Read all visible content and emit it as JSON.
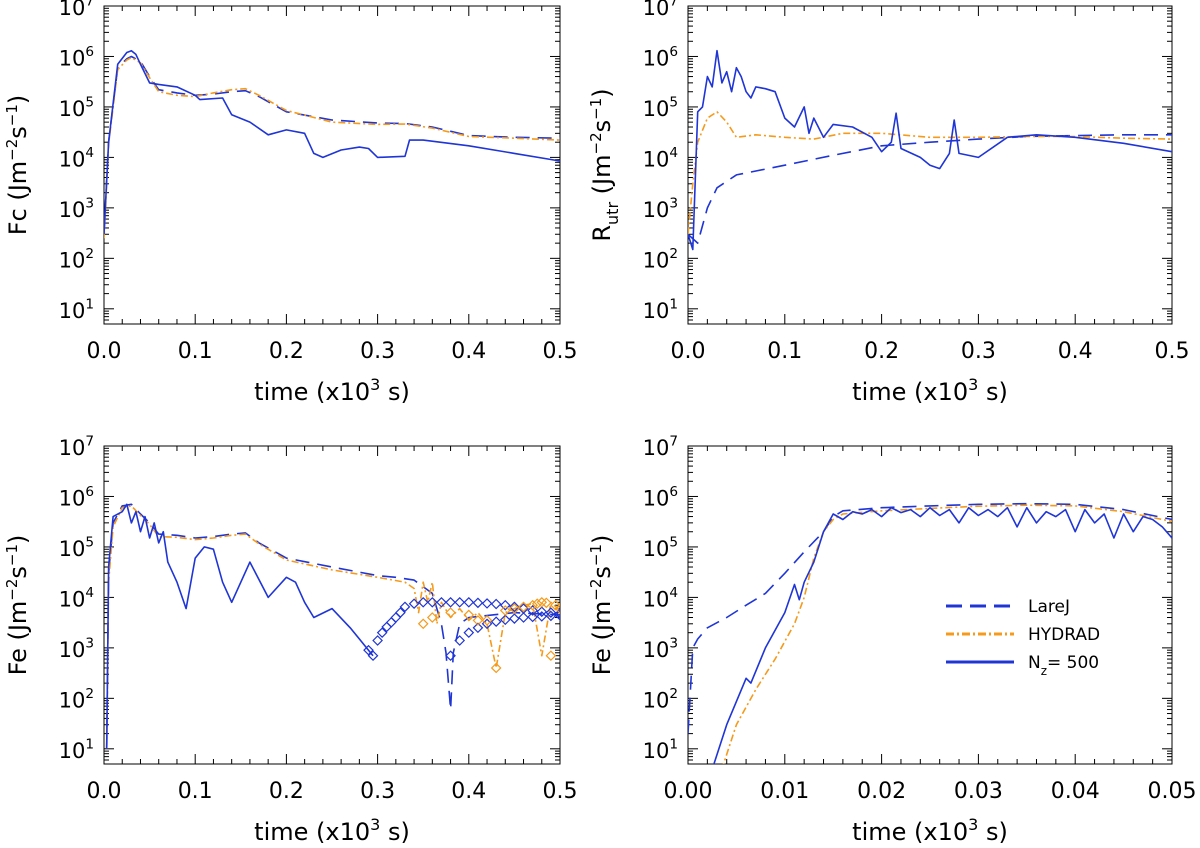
{
  "colors": {
    "larej": "#1f35d6",
    "hydrad": "#f59a1b",
    "nz500": "#1f35d6",
    "axis": "#000000"
  },
  "chart_data": [
    {
      "type": "line",
      "ylabel_main": "Fc",
      "ylabel_sub": "",
      "ylabel_units": "(Jm",
      "xlabel": "time (x10",
      "xlabel_tail": " s)",
      "xlim": [
        0,
        0.5
      ],
      "ylim": [
        5,
        10000000
      ],
      "yscale": "log",
      "xticks": [
        "0.0",
        "0.1",
        "0.2",
        "0.3",
        "0.4",
        "0.5"
      ],
      "xtick_values": [
        0,
        0.1,
        0.2,
        0.3,
        0.4,
        0.5
      ],
      "yticks": [
        "10",
        "10",
        "10",
        "10",
        "10",
        "10",
        "10"
      ],
      "ytick_exps": [
        "1",
        "2",
        "3",
        "4",
        "5",
        "6",
        "7"
      ],
      "series": [
        {
          "name": "LareJ",
          "style": "dashed",
          "x": [
            0,
            0.005,
            0.015,
            0.025,
            0.03,
            0.04,
            0.05,
            0.06,
            0.08,
            0.1,
            0.12,
            0.14,
            0.155,
            0.17,
            0.2,
            0.25,
            0.3,
            0.33,
            0.36,
            0.4,
            0.45,
            0.5
          ],
          "y": [
            300,
            20000,
            600000,
            900000,
            1000000,
            800000,
            400000,
            220000,
            190000,
            170000,
            180000,
            200000,
            210000,
            160000,
            80000,
            55000,
            48000,
            47000,
            40000,
            27000,
            25000,
            24000
          ]
        },
        {
          "name": "HYDRAD",
          "style": "dashdot",
          "x": [
            0,
            0.005,
            0.015,
            0.025,
            0.03,
            0.04,
            0.05,
            0.06,
            0.08,
            0.1,
            0.12,
            0.14,
            0.155,
            0.17,
            0.2,
            0.25,
            0.3,
            0.33,
            0.36,
            0.4,
            0.45,
            0.5
          ],
          "y": [
            250,
            18000,
            550000,
            850000,
            950000,
            750000,
            380000,
            200000,
            170000,
            160000,
            190000,
            220000,
            230000,
            170000,
            85000,
            50000,
            45000,
            46000,
            38000,
            26000,
            24000,
            22000
          ]
        },
        {
          "name": "N_z = 500",
          "style": "solid",
          "x": [
            0,
            0.005,
            0.015,
            0.025,
            0.03,
            0.035,
            0.04,
            0.05,
            0.06,
            0.08,
            0.1,
            0.105,
            0.13,
            0.14,
            0.16,
            0.18,
            0.2,
            0.22,
            0.23,
            0.24,
            0.26,
            0.28,
            0.29,
            0.3,
            0.33,
            0.335,
            0.35,
            0.4,
            0.45,
            0.5
          ],
          "y": [
            300,
            20000,
            700000,
            1200000,
            1300000,
            1100000,
            700000,
            300000,
            280000,
            250000,
            170000,
            140000,
            150000,
            70000,
            50000,
            28000,
            35000,
            30000,
            12000,
            10000,
            14000,
            16000,
            15000,
            10000,
            10500,
            22000,
            22000,
            17000,
            12000,
            8500
          ]
        }
      ]
    },
    {
      "type": "line",
      "ylabel_main": "R",
      "ylabel_sub": "utr",
      "ylabel_units": "(Jm",
      "xlabel": "time (x10",
      "xlabel_tail": " s)",
      "xlim": [
        0,
        0.5
      ],
      "ylim": [
        5,
        10000000
      ],
      "yscale": "log",
      "xticks": [
        "0.0",
        "0.1",
        "0.2",
        "0.3",
        "0.4",
        "0.5"
      ],
      "xtick_values": [
        0,
        0.1,
        0.2,
        0.3,
        0.4,
        0.5
      ],
      "yticks": [
        "10",
        "10",
        "10",
        "10",
        "10",
        "10",
        "10"
      ],
      "ytick_exps": [
        "1",
        "2",
        "3",
        "4",
        "5",
        "6",
        "7"
      ],
      "series": [
        {
          "name": "LareJ",
          "style": "dashed",
          "x": [
            0,
            0.01,
            0.02,
            0.03,
            0.05,
            0.1,
            0.15,
            0.2,
            0.25,
            0.3,
            0.35,
            0.4,
            0.45,
            0.5
          ],
          "y": [
            300,
            200,
            1000,
            2500,
            4500,
            7000,
            11000,
            17000,
            20000,
            23000,
            26000,
            27000,
            28000,
            28000
          ]
        },
        {
          "name": "HYDRAD",
          "style": "dashdot",
          "x": [
            0,
            0.005,
            0.01,
            0.02,
            0.03,
            0.04,
            0.05,
            0.07,
            0.1,
            0.13,
            0.16,
            0.2,
            0.25,
            0.3,
            0.35,
            0.4,
            0.45,
            0.5
          ],
          "y": [
            300,
            3000,
            20000,
            60000,
            80000,
            50000,
            25000,
            28000,
            25000,
            23000,
            30000,
            30000,
            25000,
            25000,
            26000,
            26000,
            24000,
            23000
          ]
        },
        {
          "name": "N_z = 500",
          "style": "solid",
          "x": [
            0,
            0.005,
            0.01,
            0.015,
            0.02,
            0.025,
            0.03,
            0.035,
            0.04,
            0.045,
            0.05,
            0.055,
            0.06,
            0.065,
            0.07,
            0.08,
            0.09,
            0.1,
            0.11,
            0.12,
            0.125,
            0.13,
            0.14,
            0.15,
            0.17,
            0.19,
            0.2,
            0.21,
            0.215,
            0.22,
            0.24,
            0.25,
            0.26,
            0.27,
            0.275,
            0.28,
            0.3,
            0.33,
            0.36,
            0.4,
            0.45,
            0.5
          ],
          "y": [
            300,
            150,
            80000,
            100000,
            400000,
            250000,
            1300000,
            300000,
            500000,
            200000,
            600000,
            400000,
            200000,
            150000,
            250000,
            230000,
            200000,
            60000,
            40000,
            100000,
            30000,
            60000,
            25000,
            45000,
            40000,
            25000,
            13000,
            20000,
            75000,
            15000,
            10000,
            7000,
            6000,
            12000,
            55000,
            12000,
            10000,
            25000,
            28000,
            25000,
            19000,
            13000
          ]
        }
      ]
    },
    {
      "type": "line",
      "ylabel_main": "Fe",
      "ylabel_sub": "",
      "ylabel_units": "(Jm",
      "xlabel": "time (x10",
      "xlabel_tail": " s)",
      "xlim": [
        0,
        0.5
      ],
      "ylim": [
        5,
        10000000
      ],
      "yscale": "log",
      "xticks": [
        "0.0",
        "0.1",
        "0.2",
        "0.3",
        "0.4",
        "0.5"
      ],
      "xtick_values": [
        0,
        0.1,
        0.2,
        0.3,
        0.4,
        0.5
      ],
      "yticks": [
        "10",
        "10",
        "10",
        "10",
        "10",
        "10",
        "10"
      ],
      "ytick_exps": [
        "1",
        "2",
        "3",
        "4",
        "5",
        "6",
        "7"
      ],
      "series": [
        {
          "name": "LareJ",
          "style": "dashed",
          "x": [
            0.003,
            0.005,
            0.01,
            0.02,
            0.03,
            0.04,
            0.05,
            0.06,
            0.08,
            0.1,
            0.12,
            0.14,
            0.155,
            0.17,
            0.2,
            0.25,
            0.3,
            0.32,
            0.34,
            0.36,
            0.37,
            0.375,
            0.38,
            0.383,
            0.39,
            0.4,
            0.45,
            0.5
          ],
          "y": [
            10,
            30000,
            300000,
            650000,
            700000,
            450000,
            300000,
            180000,
            170000,
            150000,
            160000,
            180000,
            190000,
            120000,
            60000,
            40000,
            27000,
            25000,
            22000,
            12000,
            3000,
            800,
            60,
            800,
            3000,
            4000,
            5000,
            4500
          ]
        },
        {
          "name": "HYDRAD",
          "style": "dashdot",
          "x": [
            0.003,
            0.005,
            0.01,
            0.02,
            0.03,
            0.04,
            0.05,
            0.06,
            0.08,
            0.1,
            0.12,
            0.14,
            0.155,
            0.17,
            0.2,
            0.25,
            0.3,
            0.33,
            0.34,
            0.345,
            0.35,
            0.355,
            0.36,
            0.365,
            0.37,
            0.38,
            0.39,
            0.4,
            0.41,
            0.42,
            0.43,
            0.44,
            0.45,
            0.46,
            0.47,
            0.48,
            0.49,
            0.5
          ],
          "y": [
            10,
            20000,
            250000,
            600000,
            650000,
            420000,
            280000,
            160000,
            155000,
            140000,
            150000,
            170000,
            180000,
            115000,
            55000,
            35000,
            25000,
            20000,
            15000,
            5000,
            20000,
            8000,
            20000,
            3000,
            8000,
            4000,
            6000,
            3500,
            5000,
            3000,
            400,
            5000,
            6000,
            7000,
            7500,
            700,
            8000,
            5500
          ]
        },
        {
          "name": "N_z = 500",
          "style": "solid",
          "x": [
            0.003,
            0.005,
            0.01,
            0.02,
            0.025,
            0.03,
            0.035,
            0.04,
            0.045,
            0.05,
            0.055,
            0.06,
            0.065,
            0.07,
            0.08,
            0.09,
            0.1,
            0.11,
            0.12,
            0.13,
            0.14,
            0.16,
            0.18,
            0.2,
            0.21,
            0.22,
            0.23,
            0.25,
            0.27,
            0.28,
            0.29,
            0.295
          ],
          "y": [
            10,
            40000,
            400000,
            500000,
            700000,
            300000,
            500000,
            200000,
            400000,
            150000,
            300000,
            120000,
            200000,
            50000,
            20000,
            6000,
            60000,
            100000,
            90000,
            20000,
            8000,
            50000,
            10000,
            25000,
            20000,
            8000,
            4000,
            6000,
            2500,
            1500,
            900,
            700
          ]
        },
        {
          "name": "LareJ-diamonds",
          "style": "markers",
          "x": [
            0.29,
            0.295,
            0.3,
            0.305,
            0.31,
            0.315,
            0.32,
            0.325,
            0.33,
            0.34,
            0.35,
            0.36,
            0.37,
            0.38,
            0.39,
            0.4,
            0.41,
            0.42,
            0.43,
            0.44,
            0.45,
            0.46,
            0.47,
            0.48,
            0.49,
            0.5,
            0.38,
            0.39,
            0.4,
            0.41,
            0.42,
            0.43,
            0.44,
            0.45,
            0.46,
            0.47,
            0.48,
            0.49,
            0.5
          ],
          "y": [
            900,
            700,
            1400,
            2000,
            2600,
            3200,
            4000,
            5000,
            6500,
            7500,
            8000,
            8000,
            8000,
            8000,
            8000,
            8000,
            7800,
            7600,
            7400,
            7000,
            6500,
            6000,
            5500,
            5200,
            5000,
            4800,
            700,
            1400,
            2000,
            2500,
            3000,
            3300,
            3600,
            3800,
            4000,
            4100,
            4200,
            4300,
            4400
          ]
        },
        {
          "name": "HYDRAD-diamonds",
          "style": "markers",
          "x": [
            0.35,
            0.36,
            0.38,
            0.4,
            0.41,
            0.42,
            0.43,
            0.44,
            0.45,
            0.46,
            0.47,
            0.475,
            0.48,
            0.485,
            0.49,
            0.495,
            0.5
          ],
          "y": [
            3000,
            4000,
            5000,
            4500,
            3500,
            3500,
            400,
            5500,
            6000,
            6500,
            7000,
            7500,
            8000,
            7800,
            700,
            7000,
            6000
          ]
        }
      ]
    },
    {
      "type": "line",
      "ylabel_main": "Fe",
      "ylabel_sub": "",
      "ylabel_units": "(Jm",
      "xlabel": "time (x10",
      "xlabel_tail": " s)",
      "xlim": [
        0,
        0.05
      ],
      "ylim": [
        5,
        10000000
      ],
      "yscale": "log",
      "xticks": [
        "0.00",
        "0.01",
        "0.02",
        "0.03",
        "0.04",
        "0.05"
      ],
      "xtick_values": [
        0,
        0.01,
        0.02,
        0.03,
        0.04,
        0.05
      ],
      "yticks": [
        "10",
        "10",
        "10",
        "10",
        "10",
        "10",
        "10"
      ],
      "ytick_exps": [
        "1",
        "2",
        "3",
        "4",
        "5",
        "6",
        "7"
      ],
      "legend": {
        "position": "center-right",
        "entries": [
          "LareJ",
          "HYDRAD",
          "N",
          "= 500"
        ],
        "sub": "z"
      },
      "series": [
        {
          "name": "LareJ",
          "style": "dashed",
          "x": [
            0,
            0.0005,
            0.001,
            0.002,
            0.004,
            0.006,
            0.008,
            0.01,
            0.012,
            0.014,
            0.015,
            0.016,
            0.02,
            0.025,
            0.03,
            0.035,
            0.04,
            0.045,
            0.05
          ],
          "y": [
            20,
            1000,
            1500,
            2500,
            4000,
            7000,
            12000,
            30000,
            80000,
            200000,
            400000,
            520000,
            600000,
            650000,
            700000,
            720000,
            700000,
            550000,
            350000
          ]
        },
        {
          "name": "HYDRAD",
          "style": "dashdot",
          "x": [
            0.003,
            0.005,
            0.007,
            0.009,
            0.011,
            0.012,
            0.013,
            0.014,
            0.015,
            0.016,
            0.02,
            0.025,
            0.03,
            0.035,
            0.04,
            0.045,
            0.05
          ],
          "y": [
            2,
            30,
            150,
            600,
            3000,
            10000,
            60000,
            200000,
            350000,
            450000,
            520000,
            580000,
            640000,
            670000,
            650000,
            500000,
            320000
          ]
        },
        {
          "name": "N_z = 500",
          "style": "solid",
          "x": [
            0.002,
            0.004,
            0.006,
            0.0065,
            0.008,
            0.01,
            0.011,
            0.0115,
            0.012,
            0.013,
            0.014,
            0.015,
            0.016,
            0.017,
            0.018,
            0.019,
            0.02,
            0.021,
            0.022,
            0.023,
            0.024,
            0.025,
            0.026,
            0.027,
            0.028,
            0.029,
            0.03,
            0.031,
            0.032,
            0.033,
            0.034,
            0.035,
            0.036,
            0.037,
            0.038,
            0.039,
            0.04,
            0.041,
            0.042,
            0.043,
            0.044,
            0.045,
            0.046,
            0.047,
            0.048,
            0.049,
            0.05
          ],
          "y": [
            2,
            30,
            250,
            200,
            1000,
            5000,
            18000,
            9000,
            20000,
            50000,
            200000,
            450000,
            350000,
            500000,
            450000,
            550000,
            400000,
            600000,
            480000,
            550000,
            400000,
            600000,
            420000,
            550000,
            300000,
            600000,
            420000,
            550000,
            400000,
            600000,
            250000,
            600000,
            300000,
            500000,
            400000,
            550000,
            200000,
            550000,
            300000,
            450000,
            150000,
            450000,
            200000,
            400000,
            350000,
            250000,
            150000
          ]
        }
      ]
    }
  ]
}
